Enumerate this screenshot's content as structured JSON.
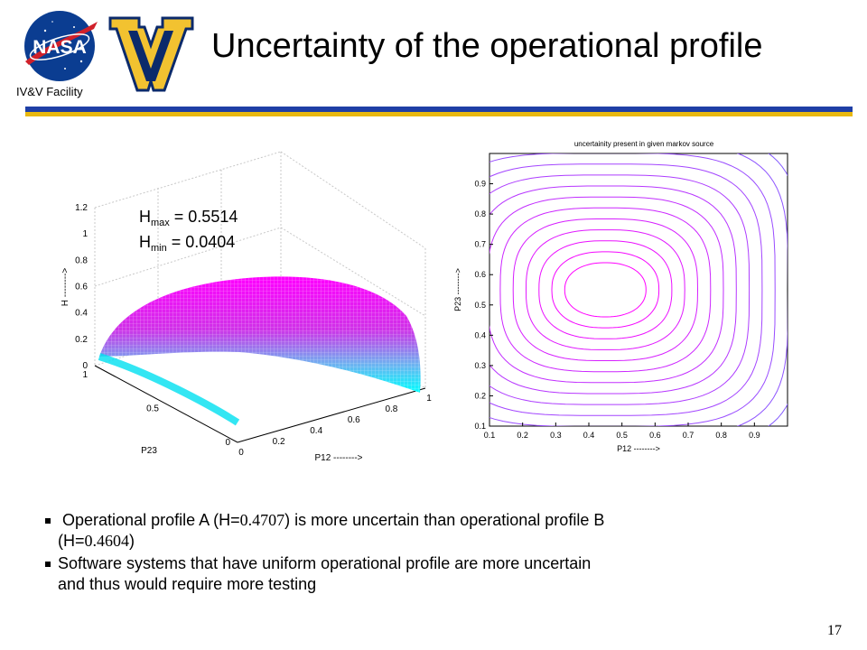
{
  "header": {
    "logo_left_text": "NASA",
    "facility_label": "IV&V Facility",
    "title": "Uncertainty of the operational profile",
    "colors": {
      "rule_blue": "#1f3fa6",
      "rule_gold": "#e8b810",
      "nasa_blue": "#0b3d91",
      "nasa_red": "#d0202a",
      "wv_gold": "#f2c230"
    }
  },
  "annotation": {
    "hmax_label": "H",
    "hmax_sub": "max",
    "hmax_value": " = 0.5514",
    "hmin_label": "H",
    "hmin_sub": "min",
    "hmin_value": "  = 0.0404"
  },
  "chart_data": [
    {
      "type": "surface",
      "title": "",
      "xlabel": "P12 -------->",
      "ylabel": "P23",
      "zlabel": "H -------->",
      "x_ticks": [
        "0",
        "0.2",
        "0.4",
        "0.6",
        "0.8",
        "1"
      ],
      "y_ticks": [
        "0",
        "0.5",
        "1"
      ],
      "z_ticks": [
        "0",
        "0.2",
        "0.4",
        "0.6",
        "0.8",
        "1",
        "1.2"
      ],
      "xlim": [
        0,
        1
      ],
      "ylim": [
        0,
        1
      ],
      "zlim": [
        0,
        1.2
      ],
      "z_max": 0.5514,
      "z_min": 0.0404,
      "grid": true
    },
    {
      "type": "contour",
      "title": "uncertainity present in given markov source",
      "xlabel": "P12 -------->",
      "ylabel": "P23 -------->",
      "x_ticks": [
        "0.1",
        "0.2",
        "0.3",
        "0.4",
        "0.5",
        "0.6",
        "0.7",
        "0.8",
        "0.9"
      ],
      "y_ticks": [
        "0.1",
        "0.2",
        "0.3",
        "0.4",
        "0.5",
        "0.6",
        "0.7",
        "0.8",
        "0.9"
      ],
      "xlim": [
        0.1,
        1.0
      ],
      "ylim": [
        0.1,
        1.0
      ],
      "center": {
        "x": 0.45,
        "y": 0.55
      },
      "levels": 22
    }
  ],
  "bullets": [
    {
      "text_before": "Operational profile A (H=",
      "value": "0.4707",
      "text_after": ") is more uncertain than operational profile B",
      "line2_before": "(H=",
      "line2_value": "0.4604",
      "line2_after": ")"
    },
    {
      "line1": "Software systems that have uniform operational profile are more uncertain",
      "line2": "and thus would require more testing"
    }
  ],
  "page_number": "17"
}
